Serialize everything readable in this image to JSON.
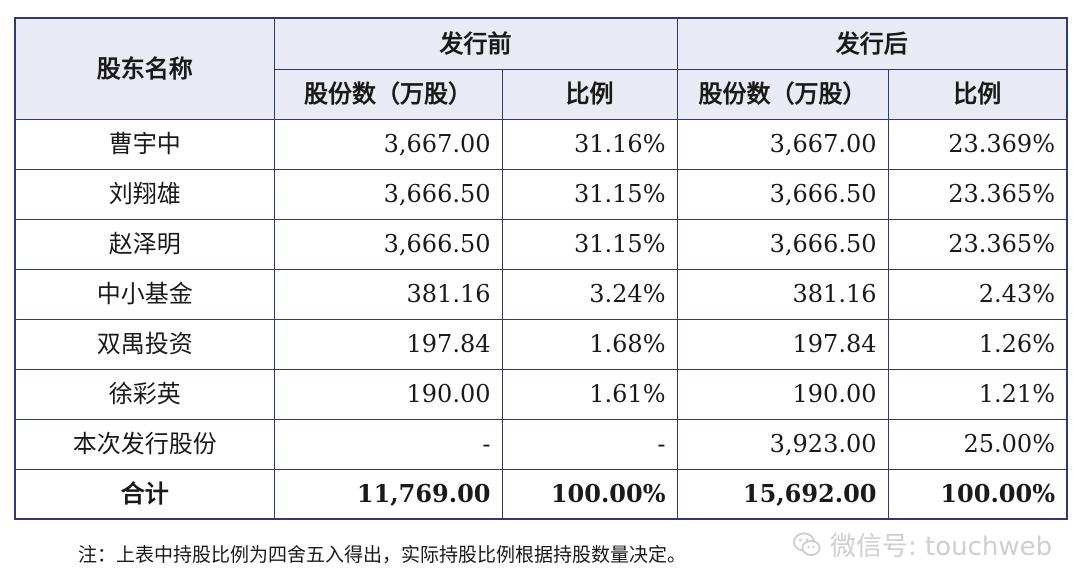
{
  "table": {
    "header": {
      "name_col": "股东名称",
      "before_group": "发行前",
      "after_group": "发行后",
      "shares_col": "股份数（万股）",
      "ratio_col": "比例"
    },
    "rows": [
      {
        "name": "曹宇中",
        "before_shares": "3,667.00",
        "before_ratio": "31.16%",
        "after_shares": "3,667.00",
        "after_ratio": "23.369%"
      },
      {
        "name": "刘翔雄",
        "before_shares": "3,666.50",
        "before_ratio": "31.15%",
        "after_shares": "3,666.50",
        "after_ratio": "23.365%"
      },
      {
        "name": "赵泽明",
        "before_shares": "3,666.50",
        "before_ratio": "31.15%",
        "after_shares": "3,666.50",
        "after_ratio": "23.365%"
      },
      {
        "name": "中小基金",
        "before_shares": "381.16",
        "before_ratio": "3.24%",
        "after_shares": "381.16",
        "after_ratio": "2.43%"
      },
      {
        "name": "双禺投资",
        "before_shares": "197.84",
        "before_ratio": "1.68%",
        "after_shares": "197.84",
        "after_ratio": "1.26%"
      },
      {
        "name": "徐彩英",
        "before_shares": "190.00",
        "before_ratio": "1.61%",
        "after_shares": "190.00",
        "after_ratio": "1.21%"
      },
      {
        "name": "本次发行股份",
        "before_shares": "-",
        "before_ratio": "-",
        "after_shares": "3,923.00",
        "after_ratio": "25.00%"
      }
    ],
    "total": {
      "name": "合计",
      "before_shares": "11,769.00",
      "before_ratio": "100.00%",
      "after_shares": "15,692.00",
      "after_ratio": "100.00%"
    }
  },
  "note": "注：上表中持股比例为四舍五入得出，实际持股比例根据持股数量决定。",
  "watermark": {
    "text": "微信号: touchweb",
    "icon": "wechat-icon"
  },
  "colors": {
    "border": "#2f3a73",
    "header_bg": "#e9eaf3",
    "watermark": "#cfcfcf"
  }
}
